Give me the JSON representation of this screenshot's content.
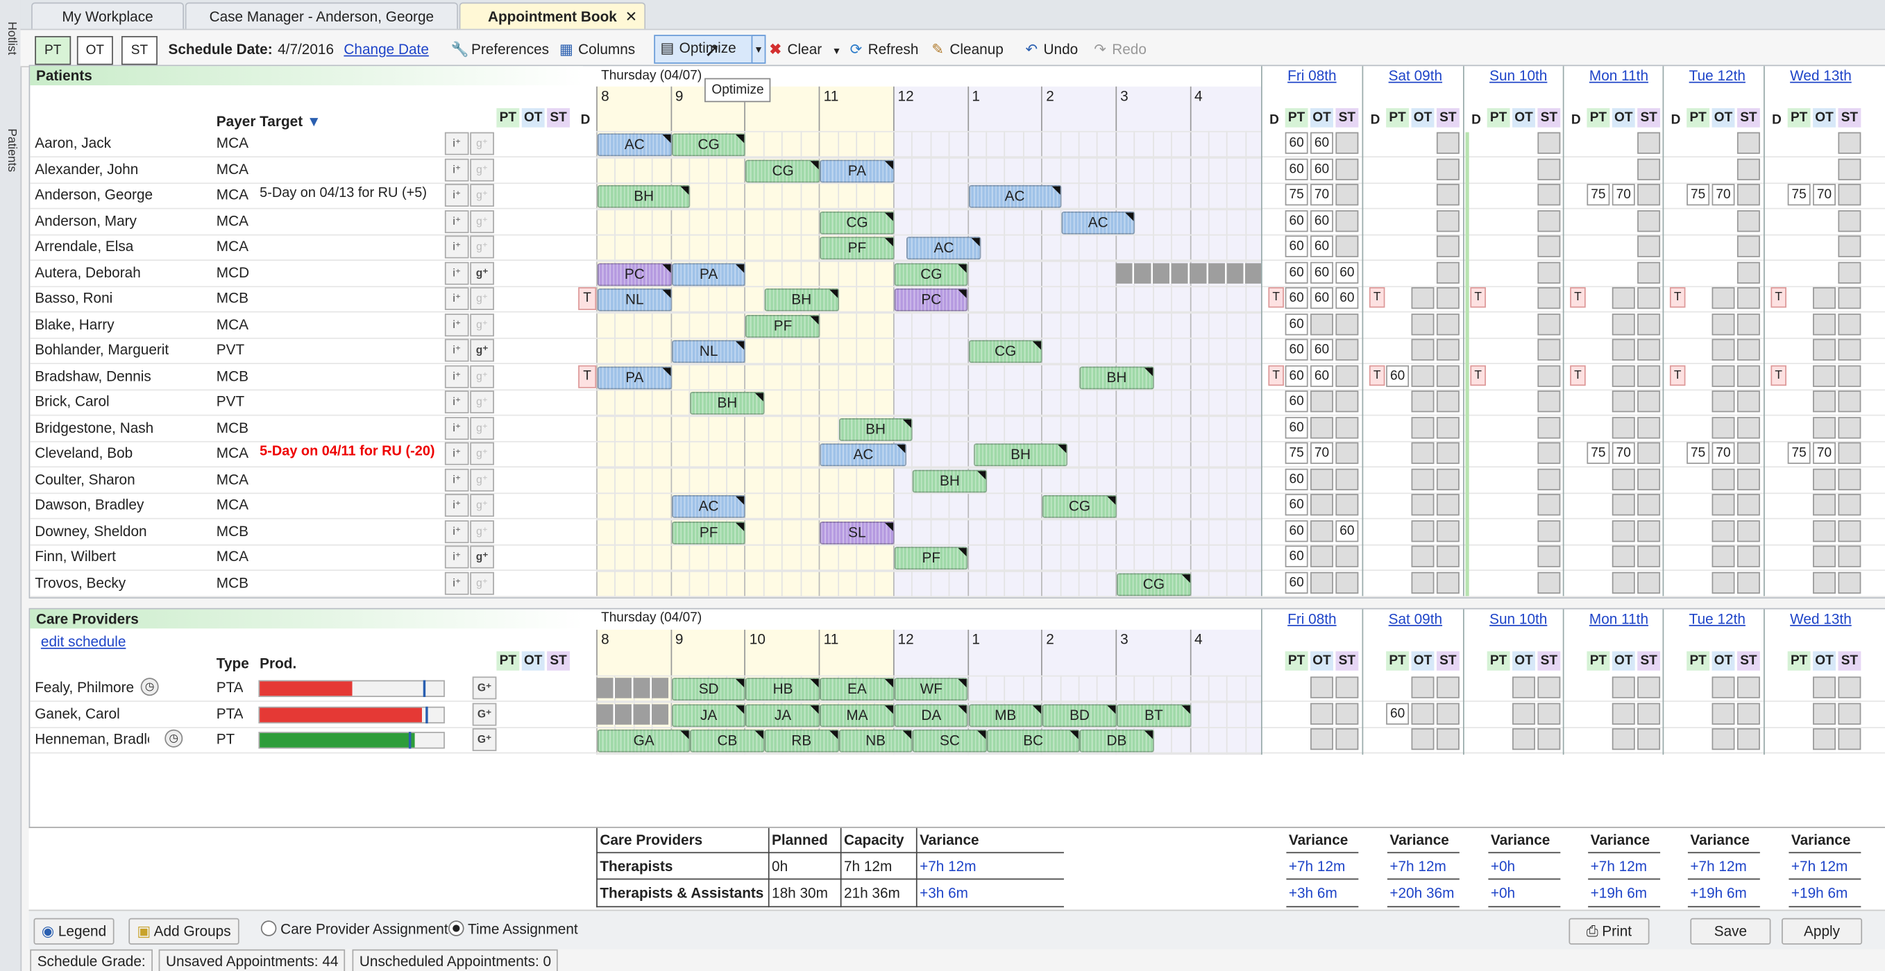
{
  "tabs": [
    {
      "label": "My Workplace"
    },
    {
      "label": "Case Manager - Anderson, George"
    },
    {
      "label": "Appointment Book"
    }
  ],
  "sidebar": {
    "hotlist": "Hotlist",
    "patients": "Patients"
  },
  "toolbar": {
    "disc": [
      "PT",
      "OT",
      "ST"
    ],
    "schedule_date_label": "Schedule Date:",
    "schedule_date": "4/7/2016",
    "change_date": "Change Date",
    "preferences": "Preferences",
    "columns": "Columns",
    "optimize": "Optimize",
    "clear": "Clear",
    "refresh": "Refresh",
    "cleanup": "Cleanup",
    "undo": "Undo",
    "redo": "Redo",
    "tooltip": "Optimize"
  },
  "patients_header": {
    "title": "Patients",
    "day": "Thursday (04/07)",
    "payer": "Payer",
    "target": "Target",
    "d": "D",
    "disc": [
      "PT",
      "OT",
      "ST"
    ]
  },
  "hours": [
    "8",
    "9",
    "10",
    "11",
    "12",
    "1",
    "2",
    "3",
    "4"
  ],
  "days": [
    "Fri 08th",
    "Sat 09th",
    "Sun 10th",
    "Mon 11th",
    "Tue 12th",
    "Wed 13th"
  ],
  "patients": [
    {
      "name": "Aaron, Jack",
      "payer": "MCA",
      "target": "",
      "g": false,
      "tflag": false,
      "appts": [
        {
          "code": "AC",
          "start": 8,
          "end": 9
        },
        {
          "code": "CG",
          "start": 9,
          "end": 10
        }
      ],
      "week": [
        [
          "60",
          "60",
          ""
        ]
      ]
    },
    {
      "name": "Alexander, John",
      "payer": "MCA",
      "target": "",
      "g": false,
      "tflag": false,
      "appts": [
        {
          "code": "CG",
          "start": 10,
          "end": 11
        },
        {
          "code": "PA",
          "start": 11,
          "end": 12
        }
      ],
      "week": [
        [
          "60",
          "60",
          ""
        ]
      ]
    },
    {
      "name": "Anderson, George",
      "payer": "MCA",
      "target": "5-Day on 04/13 for RU (+5)",
      "targetRed": false,
      "g": false,
      "tflag": false,
      "appts": [
        {
          "code": "BH",
          "start": 8,
          "end": 9.25
        },
        {
          "code": "AC",
          "start": 13,
          "end": 14.25
        }
      ],
      "week": [
        [
          "75",
          "70",
          ""
        ],
        [
          "",
          "",
          ""
        ],
        [
          "",
          "",
          ""
        ],
        [
          "75",
          "70",
          ""
        ],
        [
          "75",
          "70",
          ""
        ],
        [
          "75",
          "70",
          ""
        ]
      ]
    },
    {
      "name": "Anderson, Mary",
      "payer": "MCA",
      "target": "",
      "g": false,
      "tflag": false,
      "appts": [
        {
          "code": "CG",
          "start": 11,
          "end": 12
        },
        {
          "code": "AC",
          "start": 14.25,
          "end": 15.25
        }
      ],
      "week": [
        [
          "60",
          "60",
          ""
        ]
      ]
    },
    {
      "name": "Arrendale, Elsa",
      "payer": "MCA",
      "target": "",
      "g": false,
      "tflag": false,
      "appts": [
        {
          "code": "PF",
          "start": 11,
          "end": 12
        },
        {
          "code": "AC",
          "start": 12.17,
          "end": 13.17
        }
      ],
      "week": [
        [
          "60",
          "60",
          ""
        ]
      ]
    },
    {
      "name": "Autera, Deborah",
      "payer": "MCD",
      "target": "",
      "g": true,
      "tflag": false,
      "appts": [
        {
          "code": "PC",
          "start": 8,
          "end": 9
        },
        {
          "code": "PA",
          "start": 9,
          "end": 10
        },
        {
          "code": "CG",
          "start": 12,
          "end": 13
        }
      ],
      "week": [
        [
          "60",
          "60",
          "60"
        ]
      ]
    },
    {
      "name": "Basso, Roni",
      "payer": "MCB",
      "target": "",
      "g": false,
      "tflag": true,
      "appts": [
        {
          "code": "NL",
          "start": 8,
          "end": 9
        },
        {
          "code": "BH",
          "start": 10.25,
          "end": 11.25
        },
        {
          "code": "PC",
          "start": 12,
          "end": 13
        }
      ],
      "week": [
        [
          "60",
          "60",
          "60"
        ]
      ]
    },
    {
      "name": "Blake, Harry",
      "payer": "MCA",
      "target": "",
      "g": false,
      "tflag": false,
      "appts": [
        {
          "code": "PF",
          "start": 10,
          "end": 11
        }
      ],
      "week": [
        [
          "60",
          "",
          ""
        ]
      ]
    },
    {
      "name": "Bohlander, Marguerit",
      "payer": "PVT",
      "target": "",
      "g": true,
      "tflag": false,
      "appts": [
        {
          "code": "NL",
          "start": 9,
          "end": 10
        },
        {
          "code": "CG",
          "start": 13,
          "end": 14
        }
      ],
      "week": [
        [
          "60",
          "60",
          ""
        ]
      ]
    },
    {
      "name": "Bradshaw, Dennis",
      "payer": "MCB",
      "target": "",
      "g": false,
      "tflag": true,
      "appts": [
        {
          "code": "PA",
          "start": 8,
          "end": 9
        },
        {
          "code": "BH",
          "start": 14.5,
          "end": 15.5
        }
      ],
      "week": [
        [
          "60",
          "60",
          ""
        ],
        [
          "60",
          "",
          ""
        ]
      ]
    },
    {
      "name": "Brick, Carol",
      "payer": "PVT",
      "target": "",
      "g": false,
      "tflag": false,
      "appts": [
        {
          "code": "BH",
          "start": 9.25,
          "end": 10.25
        }
      ],
      "week": [
        [
          "60",
          "",
          ""
        ]
      ]
    },
    {
      "name": "Bridgestone, Nash",
      "payer": "MCB",
      "target": "",
      "g": false,
      "tflag": false,
      "appts": [
        {
          "code": "BH",
          "start": 11.25,
          "end": 12.25
        }
      ],
      "week": [
        [
          "60",
          "",
          ""
        ]
      ]
    },
    {
      "name": "Cleveland, Bob",
      "payer": "MCA",
      "target": "5-Day on 04/11 for RU (-20)",
      "targetRed": true,
      "g": false,
      "tflag": false,
      "appts": [
        {
          "code": "AC",
          "start": 11,
          "end": 12.17
        },
        {
          "code": "BH",
          "start": 13.08,
          "end": 14.33
        }
      ],
      "week": [
        [
          "75",
          "70",
          ""
        ],
        [
          "",
          "",
          ""
        ],
        [
          "",
          "",
          ""
        ],
        [
          "75",
          "70",
          ""
        ],
        [
          "75",
          "70",
          ""
        ],
        [
          "75",
          "70",
          ""
        ]
      ]
    },
    {
      "name": "Coulter, Sharon",
      "payer": "MCA",
      "target": "",
      "g": false,
      "tflag": false,
      "appts": [
        {
          "code": "BH",
          "start": 12.25,
          "end": 13.25
        }
      ],
      "week": [
        [
          "60",
          "",
          ""
        ]
      ]
    },
    {
      "name": "Dawson, Bradley",
      "payer": "MCA",
      "target": "",
      "g": false,
      "tflag": false,
      "appts": [
        {
          "code": "AC",
          "start": 9,
          "end": 10
        },
        {
          "code": "CG",
          "start": 14,
          "end": 15
        }
      ],
      "week": [
        [
          "60",
          "",
          ""
        ]
      ]
    },
    {
      "name": "Downey, Sheldon",
      "payer": "MCB",
      "target": "",
      "g": false,
      "tflag": false,
      "appts": [
        {
          "code": "PF",
          "start": 9,
          "end": 10
        },
        {
          "code": "SL",
          "start": 11,
          "end": 12
        }
      ],
      "week": [
        [
          "60",
          "",
          "60"
        ]
      ]
    },
    {
      "name": "Finn, Wilbert",
      "payer": "MCA",
      "target": "",
      "g": true,
      "tflag": false,
      "appts": [
        {
          "code": "PF",
          "start": 12,
          "end": 13
        }
      ],
      "week": [
        [
          "60",
          "",
          ""
        ]
      ]
    },
    {
      "name": "Trovos, Becky",
      "payer": "MCB",
      "target": "",
      "g": false,
      "tflag": false,
      "appts": [
        {
          "code": "CG",
          "start": 15,
          "end": 16
        }
      ],
      "week": [
        [
          "60",
          "",
          ""
        ]
      ]
    }
  ],
  "providers_header": {
    "title": "Care Providers",
    "edit": "edit schedule",
    "type": "Type",
    "prod": "Prod.",
    "day": "Thursday (04/07)"
  },
  "providers": [
    {
      "name": "Fealy, Philmore",
      "type": "PTA",
      "prod": 0.5,
      "prodColor": "#e53935",
      "clock": true,
      "appts": [
        {
          "code": "SD",
          "start": 9,
          "end": 10
        },
        {
          "code": "HB",
          "start": 10,
          "end": 11
        },
        {
          "code": "EA",
          "start": 11,
          "end": 12
        },
        {
          "code": "WF",
          "start": 12,
          "end": 13
        }
      ],
      "blocked": [
        8,
        9
      ],
      "sat": ""
    },
    {
      "name": "Ganek, Carol",
      "type": "PTA",
      "prod": 0.88,
      "prodColor": "#e53935",
      "clock": false,
      "appts": [
        {
          "code": "JA",
          "start": 9,
          "end": 10
        },
        {
          "code": "JA",
          "start": 10,
          "end": 11
        },
        {
          "code": "MA",
          "start": 11,
          "end": 12
        },
        {
          "code": "DA",
          "start": 12,
          "end": 13
        },
        {
          "code": "MB",
          "start": 13,
          "end": 14
        },
        {
          "code": "BD",
          "start": 14,
          "end": 15
        },
        {
          "code": "BT",
          "start": 15,
          "end": 16
        }
      ],
      "blocked": [
        8,
        9
      ],
      "sat": "60"
    },
    {
      "name": "Henneman, Bradley",
      "type": "PT",
      "prod": 0.84,
      "prodColor": "#2e9d3a",
      "clock": true,
      "appts": [
        {
          "code": "GA",
          "start": 8,
          "end": 9.25
        },
        {
          "code": "CB",
          "start": 9.25,
          "end": 10.25
        },
        {
          "code": "RB",
          "start": 10.25,
          "end": 11.25
        },
        {
          "code": "NB",
          "start": 11.25,
          "end": 12.25
        },
        {
          "code": "SC",
          "start": 12.25,
          "end": 13.25
        },
        {
          "code": "BC",
          "start": 13.25,
          "end": 14.5
        },
        {
          "code": "DB",
          "start": 14.5,
          "end": 15.5
        }
      ],
      "blocked": [],
      "sat": ""
    }
  ],
  "summary": {
    "headers": [
      "Care Providers",
      "Planned",
      "Capacity",
      "Variance"
    ],
    "rows": [
      [
        "Therapists",
        "0h",
        "7h 12m",
        "+7h 12m"
      ],
      [
        "Therapists & Assistants",
        "18h 30m",
        "21h 36m",
        "+3h 6m"
      ]
    ],
    "variance_label": "Variance",
    "day_variance": [
      [
        "+7h 12m",
        "+3h 6m"
      ],
      [
        "+7h 12m",
        "+20h 36m"
      ],
      [
        "+0h",
        "+0h"
      ],
      [
        "+7h 12m",
        "+19h 6m"
      ],
      [
        "+7h 12m",
        "+19h 6m"
      ],
      [
        "+7h 12m",
        "+19h 6m"
      ]
    ]
  },
  "bottom": {
    "legend": "Legend",
    "add_groups": "Add Groups",
    "radio1": "Care Provider Assignment",
    "radio2": "Time Assignment",
    "print": "Print",
    "save": "Save",
    "apply": "Apply"
  },
  "status": {
    "grade": "Schedule Grade:",
    "unsaved": "Unsaved Appointments: 44",
    "unscheduled": "Unscheduled Appointments: 0"
  }
}
